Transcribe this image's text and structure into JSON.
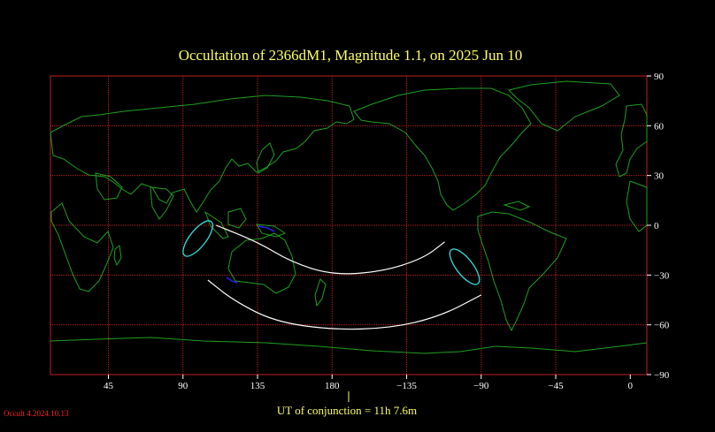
{
  "title": "Occultation  of  2366dM1,      Magnitude 1.1,   on  2025 Jun 10",
  "colors": {
    "background": "#000000",
    "title": "#ffff66",
    "grid": "#c02020",
    "coastline": "#1fa01f",
    "path": "#ffffff",
    "ellipse": "#33dddd",
    "blue_segment": "#2020ff",
    "ticks": "#ffffff",
    "version": "#ff2020"
  },
  "map": {
    "projection": "equirectangular, Pacific-centred",
    "lon_tick_labels": [
      "45",
      "90",
      "135",
      "180",
      "−135",
      "−90",
      "−45",
      "0"
    ],
    "lat_tick_labels": [
      "90",
      "60",
      "30",
      "0",
      "−30",
      "−60",
      "−90"
    ],
    "gridlines": true
  },
  "conjunction": {
    "label": "UT of conjunction = 11h  7.6m",
    "marker_lon": 180
  },
  "version_label": "Occult 4.2024.10.13",
  "occultation_path": {
    "north_limit": [
      [
        110,
        0
      ],
      [
        135,
        -10
      ],
      [
        155,
        -22
      ],
      [
        180,
        -30
      ],
      [
        210,
        -28
      ],
      [
        235,
        -20
      ],
      [
        248,
        -10
      ]
    ],
    "south_limit": [
      [
        105,
        -33
      ],
      [
        120,
        -45
      ],
      [
        145,
        -58
      ],
      [
        180,
        -63
      ],
      [
        215,
        -62
      ],
      [
        245,
        -55
      ],
      [
        270,
        -42
      ]
    ],
    "west_end_curve": {
      "center": [
        99,
        -8
      ],
      "rx_deg": 13,
      "ry_deg": 9,
      "rotation": -52
    },
    "east_end_curve": {
      "center": [
        260,
        -25
      ],
      "rx_deg": 13,
      "ry_deg": 9,
      "rotation": 52
    }
  }
}
